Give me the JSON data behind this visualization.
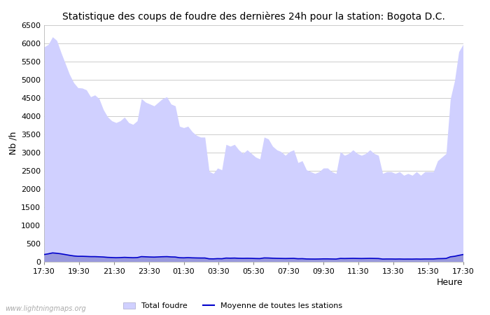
{
  "title": "Statistique des coups de foudre des dernières 24h pour la station: Bogota D.C.",
  "xlabel": "Heure",
  "ylabel": "Nb /h",
  "ylim": [
    0,
    6500
  ],
  "yticks": [
    0,
    500,
    1000,
    1500,
    2000,
    2500,
    3000,
    3500,
    4000,
    4500,
    5000,
    5500,
    6000,
    6500
  ],
  "xtick_labels": [
    "17:30",
    "19:30",
    "21:30",
    "23:30",
    "01:30",
    "03:30",
    "05:30",
    "07:30",
    "09:30",
    "11:30",
    "13:30",
    "15:30",
    "17:30"
  ],
  "background_color": "#ffffff",
  "plot_bg_color": "#ffffff",
  "grid_color": "#cccccc",
  "total_foudre_color": "#d0d0ff",
  "bogota_color": "#9999dd",
  "mean_line_color": "#0000cc",
  "watermark": "www.lightningmaps.org",
  "total_foudre_values": [
    5900,
    5970,
    6180,
    6080,
    5750,
    5450,
    5150,
    4920,
    4780,
    4770,
    4720,
    4530,
    4580,
    4480,
    4180,
    3980,
    3870,
    3820,
    3870,
    3970,
    3820,
    3770,
    3870,
    4480,
    4380,
    4330,
    4280,
    4380,
    4480,
    4530,
    4330,
    4280,
    3720,
    3680,
    3720,
    3570,
    3470,
    3420,
    3420,
    2480,
    2420,
    2570,
    2520,
    3220,
    3170,
    3220,
    3070,
    2970,
    3070,
    2970,
    2870,
    2820,
    3420,
    3370,
    3170,
    3070,
    3020,
    2920,
    3020,
    3070,
    2720,
    2770,
    2520,
    2470,
    2420,
    2470,
    2570,
    2570,
    2470,
    2420,
    3020,
    2920,
    2970,
    3070,
    2970,
    2920,
    2970,
    3070,
    2970,
    2920,
    2420,
    2470,
    2470,
    2420,
    2470,
    2370,
    2420,
    2370,
    2470,
    2370,
    2470,
    2470,
    2470,
    2770,
    2870,
    2970,
    4470,
    4970,
    5770,
    5970
  ],
  "bogota_values": [
    195,
    215,
    245,
    235,
    215,
    195,
    175,
    155,
    145,
    145,
    140,
    135,
    135,
    130,
    125,
    115,
    110,
    105,
    110,
    115,
    110,
    105,
    110,
    135,
    130,
    125,
    123,
    128,
    133,
    135,
    128,
    125,
    105,
    103,
    107,
    102,
    100,
    97,
    97,
    75,
    73,
    80,
    77,
    95,
    93,
    95,
    90,
    87,
    90,
    87,
    83,
    81,
    100,
    98,
    92,
    88,
    86,
    83,
    86,
    88,
    77,
    79,
    72,
    70,
    68,
    70,
    73,
    73,
    70,
    68,
    86,
    83,
    85,
    88,
    85,
    83,
    85,
    88,
    85,
    83,
    68,
    70,
    70,
    68,
    70,
    67,
    68,
    67,
    70,
    67,
    70,
    70,
    70,
    79,
    82,
    85,
    130,
    145,
    170,
    195
  ],
  "mean_line_values": [
    190,
    210,
    235,
    225,
    210,
    190,
    170,
    152,
    142,
    142,
    138,
    133,
    133,
    128,
    123,
    113,
    108,
    103,
    107,
    113,
    108,
    103,
    107,
    133,
    128,
    123,
    120,
    125,
    130,
    133,
    125,
    122,
    103,
    100,
    105,
    100,
    97,
    95,
    95,
    73,
    71,
    78,
    75,
    93,
    90,
    93,
    87,
    85,
    87,
    85,
    81,
    79,
    97,
    95,
    89,
    85,
    83,
    81,
    83,
    85,
    75,
    77,
    69,
    67,
    66,
    68,
    71,
    71,
    68,
    66,
    83,
    81,
    83,
    85,
    83,
    81,
    83,
    85,
    83,
    81,
    66,
    68,
    68,
    66,
    68,
    65,
    66,
    65,
    68,
    65,
    68,
    68,
    68,
    77,
    79,
    83,
    127,
    142,
    167,
    190
  ]
}
